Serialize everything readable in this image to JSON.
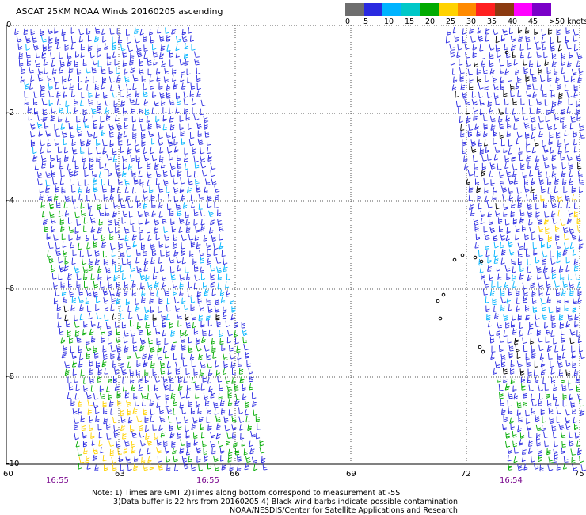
{
  "title": "ASCAT 25KM NOAA Winds 20160205 ascending",
  "legend": {
    "labels": [
      "0",
      "5",
      "10",
      "15",
      "20",
      "25",
      "30",
      "35",
      "40",
      "45",
      ">50 knots"
    ],
    "colors": [
      "#6e6e6e",
      "#2a2ae0",
      "#00b4ff",
      "#00c8c8",
      "#00aa00",
      "#ffd200",
      "#ff8a00",
      "#ff2020",
      "#8b3a10",
      "#ff00ff",
      "#7a00c8"
    ]
  },
  "axes": {
    "x_ticks": [
      "60",
      "63",
      "66",
      "69",
      "72",
      "75"
    ],
    "y_ticks": [
      "0",
      "-2",
      "-4",
      "-6",
      "-8",
      "-10"
    ]
  },
  "pass_times": [
    "16:55",
    "16:55",
    "16:54"
  ],
  "notes": {
    "line1": "Note: 1) Times are GMT 2)Times along bottom correspond to measurement at -5S",
    "line2": "3)Data buffer is 22 hrs from 20160205 4) Black wind barbs indicate possible contamination",
    "line3": "NOAA/NESDIS/Center for Satellite Applications and Research"
  }
}
